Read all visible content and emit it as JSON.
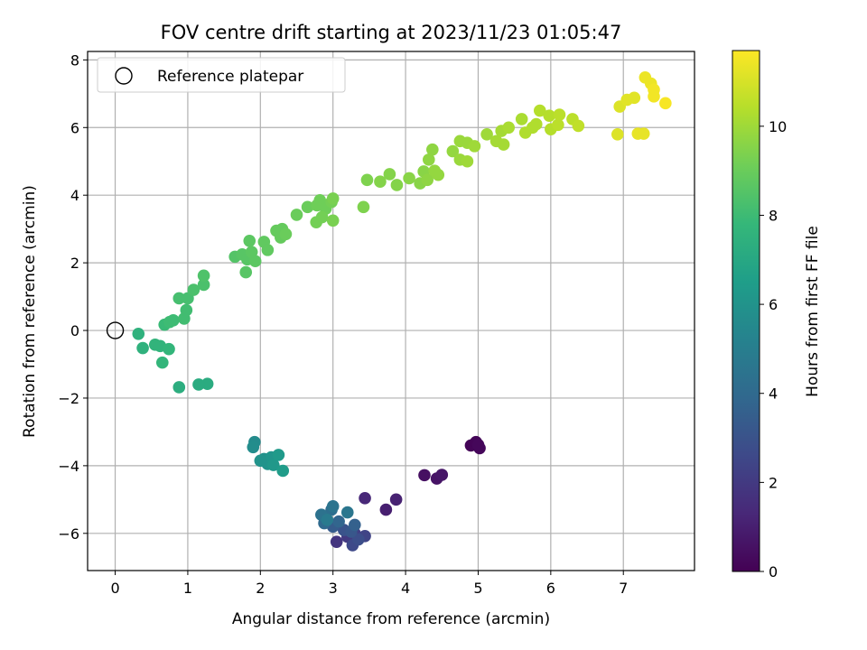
{
  "chart_data": {
    "type": "scatter",
    "title": "FOV centre drift starting at 2023/11/23 01:05:47",
    "xlabel": "Angular distance from reference (arcmin)",
    "ylabel": "Rotation from reference (arcmin)",
    "xlim": [
      -0.38,
      7.98
    ],
    "ylim": [
      -7.1,
      8.25
    ],
    "xticks": [
      "0",
      "1",
      "2",
      "3",
      "4",
      "5",
      "6",
      "7"
    ],
    "yticks": [
      "−6",
      "−4",
      "−2",
      "0",
      "2",
      "4",
      "6",
      "8"
    ],
    "grid": true,
    "legend": {
      "location": "upper-left",
      "entries": [
        "Reference platepar"
      ]
    },
    "reference_point": {
      "x": 0,
      "y": 0
    },
    "colorbar": {
      "label": "Hours from first FF file",
      "range": [
        0,
        11.7
      ],
      "ticks": [
        "0",
        "2",
        "4",
        "6",
        "8",
        "10"
      ],
      "colormap": "viridis"
    },
    "points": [
      {
        "x": 4.9,
        "y": -3.4,
        "t": 0.1
      },
      {
        "x": 4.97,
        "y": -3.3,
        "t": 0.1
      },
      {
        "x": 5.02,
        "y": -3.48,
        "t": 0.2
      },
      {
        "x": 5.0,
        "y": -3.38,
        "t": 0.2
      },
      {
        "x": 4.26,
        "y": -4.28,
        "t": 0.5
      },
      {
        "x": 4.43,
        "y": -4.38,
        "t": 0.6
      },
      {
        "x": 4.5,
        "y": -4.27,
        "t": 0.7
      },
      {
        "x": 3.73,
        "y": -5.3,
        "t": 1.0
      },
      {
        "x": 3.87,
        "y": -5.0,
        "t": 1.1
      },
      {
        "x": 3.44,
        "y": -4.96,
        "t": 1.3
      },
      {
        "x": 3.05,
        "y": -6.25,
        "t": 1.8
      },
      {
        "x": 3.2,
        "y": -6.1,
        "t": 2.0
      },
      {
        "x": 3.3,
        "y": -6.0,
        "t": 2.2
      },
      {
        "x": 3.44,
        "y": -6.08,
        "t": 2.4
      },
      {
        "x": 3.27,
        "y": -6.35,
        "t": 2.6
      },
      {
        "x": 3.35,
        "y": -6.18,
        "t": 2.8
      },
      {
        "x": 3.15,
        "y": -5.9,
        "t": 3.0
      },
      {
        "x": 3.25,
        "y": -5.95,
        "t": 3.2
      },
      {
        "x": 3.0,
        "y": -5.8,
        "t": 3.4
      },
      {
        "x": 3.3,
        "y": -5.75,
        "t": 3.6
      },
      {
        "x": 3.08,
        "y": -5.65,
        "t": 3.8
      },
      {
        "x": 2.88,
        "y": -5.7,
        "t": 4.0
      },
      {
        "x": 2.98,
        "y": -5.3,
        "t": 4.2
      },
      {
        "x": 2.84,
        "y": -5.45,
        "t": 4.4
      },
      {
        "x": 3.0,
        "y": -5.2,
        "t": 4.5
      },
      {
        "x": 3.2,
        "y": -5.38,
        "t": 4.6
      },
      {
        "x": 2.92,
        "y": -5.6,
        "t": 4.8
      },
      {
        "x": 1.92,
        "y": -3.3,
        "t": 5.6
      },
      {
        "x": 1.9,
        "y": -3.45,
        "t": 5.7
      },
      {
        "x": 2.05,
        "y": -3.8,
        "t": 5.9
      },
      {
        "x": 2.1,
        "y": -3.95,
        "t": 6.0
      },
      {
        "x": 2.15,
        "y": -3.75,
        "t": 6.1
      },
      {
        "x": 2.18,
        "y": -3.98,
        "t": 6.2
      },
      {
        "x": 2.25,
        "y": -3.68,
        "t": 6.3
      },
      {
        "x": 2.31,
        "y": -4.15,
        "t": 6.4
      },
      {
        "x": 2.0,
        "y": -3.85,
        "t": 6.0
      },
      {
        "x": 1.27,
        "y": -1.58,
        "t": 7.2
      },
      {
        "x": 1.15,
        "y": -1.6,
        "t": 7.2
      },
      {
        "x": 0.88,
        "y": -1.68,
        "t": 7.3
      },
      {
        "x": 0.32,
        "y": -0.1,
        "t": 7.5
      },
      {
        "x": 0.38,
        "y": -0.52,
        "t": 7.5
      },
      {
        "x": 0.55,
        "y": -0.42,
        "t": 7.6
      },
      {
        "x": 0.62,
        "y": -0.46,
        "t": 7.6
      },
      {
        "x": 0.74,
        "y": -0.55,
        "t": 7.7
      },
      {
        "x": 0.65,
        "y": -0.95,
        "t": 7.7
      },
      {
        "x": 0.68,
        "y": 0.17,
        "t": 7.9
      },
      {
        "x": 0.75,
        "y": 0.25,
        "t": 8.0
      },
      {
        "x": 0.8,
        "y": 0.3,
        "t": 8.0
      },
      {
        "x": 0.95,
        "y": 0.35,
        "t": 8.1
      },
      {
        "x": 0.98,
        "y": 0.6,
        "t": 8.1
      },
      {
        "x": 0.88,
        "y": 0.95,
        "t": 8.2
      },
      {
        "x": 1.0,
        "y": 0.95,
        "t": 8.2
      },
      {
        "x": 1.08,
        "y": 1.2,
        "t": 8.3
      },
      {
        "x": 1.22,
        "y": 1.35,
        "t": 8.3
      },
      {
        "x": 1.22,
        "y": 1.62,
        "t": 8.4
      },
      {
        "x": 1.65,
        "y": 2.18,
        "t": 8.5
      },
      {
        "x": 1.75,
        "y": 2.25,
        "t": 8.6
      },
      {
        "x": 1.82,
        "y": 2.1,
        "t": 8.6
      },
      {
        "x": 1.8,
        "y": 1.72,
        "t": 8.6
      },
      {
        "x": 1.88,
        "y": 2.32,
        "t": 8.7
      },
      {
        "x": 1.93,
        "y": 2.05,
        "t": 8.7
      },
      {
        "x": 1.85,
        "y": 2.65,
        "t": 8.7
      },
      {
        "x": 2.05,
        "y": 2.62,
        "t": 8.8
      },
      {
        "x": 2.1,
        "y": 2.38,
        "t": 8.8
      },
      {
        "x": 2.22,
        "y": 2.95,
        "t": 8.9
      },
      {
        "x": 2.3,
        "y": 3.0,
        "t": 8.9
      },
      {
        "x": 2.28,
        "y": 2.75,
        "t": 8.9
      },
      {
        "x": 2.35,
        "y": 2.85,
        "t": 9.0
      },
      {
        "x": 2.5,
        "y": 3.42,
        "t": 9.0
      },
      {
        "x": 2.65,
        "y": 3.65,
        "t": 9.0
      },
      {
        "x": 2.78,
        "y": 3.7,
        "t": 9.1
      },
      {
        "x": 2.82,
        "y": 3.85,
        "t": 9.1
      },
      {
        "x": 2.9,
        "y": 3.6,
        "t": 9.1
      },
      {
        "x": 2.98,
        "y": 3.8,
        "t": 9.2
      },
      {
        "x": 2.77,
        "y": 3.2,
        "t": 9.2
      },
      {
        "x": 2.85,
        "y": 3.35,
        "t": 9.2
      },
      {
        "x": 3.0,
        "y": 3.25,
        "t": 9.3
      },
      {
        "x": 3.0,
        "y": 3.9,
        "t": 9.3
      },
      {
        "x": 3.42,
        "y": 3.65,
        "t": 9.4
      },
      {
        "x": 3.47,
        "y": 4.45,
        "t": 9.4
      },
      {
        "x": 3.65,
        "y": 4.4,
        "t": 9.5
      },
      {
        "x": 3.78,
        "y": 4.62,
        "t": 9.5
      },
      {
        "x": 3.88,
        "y": 4.3,
        "t": 9.5
      },
      {
        "x": 4.05,
        "y": 4.5,
        "t": 9.6
      },
      {
        "x": 4.2,
        "y": 4.35,
        "t": 9.6
      },
      {
        "x": 4.25,
        "y": 4.7,
        "t": 9.6
      },
      {
        "x": 4.3,
        "y": 4.45,
        "t": 9.7
      },
      {
        "x": 4.32,
        "y": 5.05,
        "t": 9.7
      },
      {
        "x": 4.37,
        "y": 5.35,
        "t": 9.7
      },
      {
        "x": 4.4,
        "y": 4.72,
        "t": 9.8
      },
      {
        "x": 4.45,
        "y": 4.6,
        "t": 9.8
      },
      {
        "x": 4.65,
        "y": 5.3,
        "t": 9.8
      },
      {
        "x": 4.75,
        "y": 5.6,
        "t": 9.9
      },
      {
        "x": 4.85,
        "y": 5.55,
        "t": 9.9
      },
      {
        "x": 4.75,
        "y": 5.05,
        "t": 9.9
      },
      {
        "x": 4.85,
        "y": 5.0,
        "t": 10.0
      },
      {
        "x": 4.95,
        "y": 5.45,
        "t": 10.0
      },
      {
        "x": 5.12,
        "y": 5.8,
        "t": 10.0
      },
      {
        "x": 5.25,
        "y": 5.6,
        "t": 10.1
      },
      {
        "x": 5.32,
        "y": 5.9,
        "t": 10.1
      },
      {
        "x": 5.35,
        "y": 5.5,
        "t": 10.1
      },
      {
        "x": 5.42,
        "y": 6.0,
        "t": 10.2
      },
      {
        "x": 5.6,
        "y": 6.25,
        "t": 10.2
      },
      {
        "x": 5.65,
        "y": 5.85,
        "t": 10.3
      },
      {
        "x": 5.75,
        "y": 6.0,
        "t": 10.3
      },
      {
        "x": 5.8,
        "y": 6.1,
        "t": 10.3
      },
      {
        "x": 5.85,
        "y": 6.5,
        "t": 10.4
      },
      {
        "x": 5.98,
        "y": 6.35,
        "t": 10.4
      },
      {
        "x": 6.0,
        "y": 5.95,
        "t": 10.4
      },
      {
        "x": 6.1,
        "y": 6.08,
        "t": 10.5
      },
      {
        "x": 6.12,
        "y": 6.38,
        "t": 10.5
      },
      {
        "x": 6.3,
        "y": 6.25,
        "t": 10.5
      },
      {
        "x": 6.38,
        "y": 6.05,
        "t": 10.6
      },
      {
        "x": 6.92,
        "y": 5.8,
        "t": 11.1
      },
      {
        "x": 6.95,
        "y": 6.62,
        "t": 11.1
      },
      {
        "x": 7.05,
        "y": 6.82,
        "t": 11.2
      },
      {
        "x": 7.15,
        "y": 6.88,
        "t": 11.2
      },
      {
        "x": 7.2,
        "y": 5.82,
        "t": 11.3
      },
      {
        "x": 7.28,
        "y": 5.82,
        "t": 11.3
      },
      {
        "x": 7.3,
        "y": 7.48,
        "t": 11.4
      },
      {
        "x": 7.38,
        "y": 7.3,
        "t": 11.4
      },
      {
        "x": 7.42,
        "y": 7.12,
        "t": 11.5
      },
      {
        "x": 7.42,
        "y": 6.92,
        "t": 11.5
      },
      {
        "x": 7.58,
        "y": 6.72,
        "t": 11.6
      }
    ]
  }
}
